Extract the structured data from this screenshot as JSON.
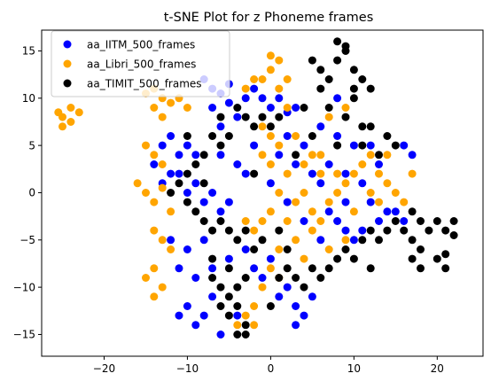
{
  "chart_data": {
    "type": "scatter",
    "title": "t-SNE Plot for z Phoneme frames",
    "xlabel": "",
    "ylabel": "",
    "xlim": [
      -27.5,
      25.5
    ],
    "ylim": [
      -17.3,
      17.2
    ],
    "xticks": [
      -20,
      -10,
      0,
      10,
      20
    ],
    "yticks": [
      -15,
      -10,
      -5,
      0,
      5,
      10,
      15
    ],
    "grid": false,
    "legend": "top-left",
    "series": [
      {
        "name": "aa_IITM_500_frames",
        "color": "#0000ff",
        "points": [
          [
            -8,
            12
          ],
          [
            -7,
            11
          ],
          [
            -6,
            10.5
          ],
          [
            -5,
            11.5
          ],
          [
            -7,
            9
          ],
          [
            -5,
            9.5
          ],
          [
            -4,
            8
          ],
          [
            -6,
            7
          ],
          [
            -3,
            10
          ],
          [
            -2,
            11
          ],
          [
            -1,
            10
          ],
          [
            0,
            9
          ],
          [
            1,
            10
          ],
          [
            2,
            8.5
          ],
          [
            3,
            9
          ],
          [
            -12,
            6
          ],
          [
            -13,
            5
          ],
          [
            -11,
            4
          ],
          [
            -10,
            5
          ],
          [
            -9,
            4
          ],
          [
            -12,
            2
          ],
          [
            -14,
            3
          ],
          [
            -13,
            1
          ],
          [
            -11,
            2
          ],
          [
            -10,
            0
          ],
          [
            -9,
            1
          ],
          [
            -8,
            -1
          ],
          [
            -6,
            -2
          ],
          [
            -5,
            -1
          ],
          [
            -7,
            0
          ],
          [
            2,
            6
          ],
          [
            4,
            5
          ],
          [
            6,
            7
          ],
          [
            8,
            6
          ],
          [
            10,
            5
          ],
          [
            3,
            3
          ],
          [
            5,
            2
          ],
          [
            7,
            3
          ],
          [
            9,
            2
          ],
          [
            11,
            1
          ],
          [
            12,
            -1
          ],
          [
            14,
            -2
          ],
          [
            13,
            -3
          ],
          [
            15,
            -2
          ],
          [
            11,
            -4
          ],
          [
            16,
            5
          ],
          [
            17,
            4
          ],
          [
            16,
            -3
          ],
          [
            7,
            -2
          ],
          [
            8,
            -3
          ],
          [
            9,
            -4
          ],
          [
            10,
            -5
          ],
          [
            6,
            -5
          ],
          [
            -12,
            -5
          ],
          [
            -10,
            -6
          ],
          [
            -8,
            -5
          ],
          [
            -11,
            -8
          ],
          [
            -9,
            -9
          ],
          [
            -7,
            -8
          ],
          [
            -5,
            -7
          ],
          [
            -3,
            -6
          ],
          [
            -2,
            -8
          ],
          [
            -1,
            -9
          ],
          [
            0,
            -7
          ],
          [
            1,
            -11
          ],
          [
            2,
            -10
          ],
          [
            3,
            -12
          ],
          [
            4,
            -13
          ],
          [
            5,
            -11
          ],
          [
            3,
            -14
          ],
          [
            -10,
            -12
          ],
          [
            -11,
            -13
          ],
          [
            -9,
            -14
          ],
          [
            -8,
            -13
          ],
          [
            -6,
            -15
          ],
          [
            -7,
            -11
          ],
          [
            -4,
            -13
          ],
          [
            4,
            -3
          ],
          [
            6,
            1
          ],
          [
            8,
            10
          ],
          [
            -2,
            5
          ],
          [
            -4,
            3
          ],
          [
            0,
            1
          ],
          [
            2,
            -1
          ],
          [
            -3,
            2
          ],
          [
            1,
            4
          ],
          [
            9,
            -1
          ],
          [
            -6,
            4
          ],
          [
            12,
            5
          ],
          [
            13,
            3
          ]
        ]
      },
      {
        "name": "aa_Libri_500_frames",
        "color": "#ffa500",
        "points": [
          [
            -25,
            8
          ],
          [
            -24,
            9
          ],
          [
            -25,
            7
          ],
          [
            -24,
            7.5
          ],
          [
            -23,
            8.5
          ],
          [
            -25.5,
            8.5
          ],
          [
            -14,
            11
          ],
          [
            -13,
            10
          ],
          [
            -15,
            10.5
          ],
          [
            -12,
            9.5
          ],
          [
            -14,
            9
          ],
          [
            -11,
            10
          ],
          [
            -13,
            8
          ],
          [
            -10,
            9
          ],
          [
            -2,
            12
          ],
          [
            0,
            13
          ],
          [
            1,
            14
          ],
          [
            0,
            14.5
          ],
          [
            2,
            12
          ],
          [
            1,
            11
          ],
          [
            -3,
            11
          ],
          [
            -1,
            12
          ],
          [
            -15,
            5
          ],
          [
            -14,
            4
          ],
          [
            -15,
            0
          ],
          [
            -14,
            -1
          ],
          [
            -13,
            0.5
          ],
          [
            -12,
            -2
          ],
          [
            -16,
            1
          ],
          [
            -13,
            3
          ],
          [
            0,
            6
          ],
          [
            1,
            5
          ],
          [
            -1,
            4
          ],
          [
            0,
            3
          ],
          [
            2,
            2
          ],
          [
            1,
            0
          ],
          [
            3,
            -1
          ],
          [
            4,
            0
          ],
          [
            5,
            -2
          ],
          [
            6,
            -3
          ],
          [
            7,
            -1
          ],
          [
            8,
            0
          ],
          [
            9,
            1
          ],
          [
            10,
            2
          ],
          [
            11,
            3
          ],
          [
            12,
            4
          ],
          [
            13,
            2
          ],
          [
            14,
            1
          ],
          [
            15,
            0
          ],
          [
            16,
            -1
          ],
          [
            4,
            3
          ],
          [
            6,
            4
          ],
          [
            8,
            2
          ],
          [
            2,
            -3
          ],
          [
            0,
            -2
          ],
          [
            -1,
            -3
          ],
          [
            3,
            -5
          ],
          [
            5,
            -4
          ],
          [
            7,
            -6
          ],
          [
            9,
            -5
          ],
          [
            -14,
            -8
          ],
          [
            -15,
            -9
          ],
          [
            -13,
            -10
          ],
          [
            -14,
            -11
          ],
          [
            -13,
            -5
          ],
          [
            -14,
            -4
          ],
          [
            -12,
            -6
          ],
          [
            -2,
            -4
          ],
          [
            -3,
            -3
          ],
          [
            -2,
            -12
          ],
          [
            -3,
            -13
          ],
          [
            -4,
            -14
          ],
          [
            -2,
            -14
          ],
          [
            1,
            -6
          ],
          [
            0,
            -8
          ],
          [
            1,
            -9
          ],
          [
            -1,
            -10
          ],
          [
            5,
            4
          ],
          [
            3,
            6
          ],
          [
            14,
            4
          ],
          [
            17,
            2
          ],
          [
            12,
            0
          ],
          [
            10,
            -2
          ],
          [
            7,
            8
          ],
          [
            9,
            9
          ],
          [
            6,
            2
          ],
          [
            4,
            -7
          ],
          [
            -1,
            7
          ],
          [
            2,
            9
          ],
          [
            13,
            -1
          ]
        ]
      },
      {
        "name": "aa_TIMIT_500_frames",
        "color": "#000000",
        "points": [
          [
            5,
            14
          ],
          [
            6,
            13
          ],
          [
            7,
            12
          ],
          [
            8,
            14
          ],
          [
            9,
            15
          ],
          [
            10,
            13
          ],
          [
            11,
            12
          ],
          [
            12,
            11
          ],
          [
            8,
            16
          ],
          [
            9,
            15.5
          ],
          [
            6,
            11
          ],
          [
            10,
            11
          ],
          [
            7,
            9
          ],
          [
            9,
            8
          ],
          [
            12,
            7
          ],
          [
            14,
            6
          ],
          [
            15,
            5
          ],
          [
            13,
            4
          ],
          [
            11,
            7
          ],
          [
            10,
            10
          ],
          [
            -4,
            9
          ],
          [
            -3,
            8
          ],
          [
            -2,
            7
          ],
          [
            -1,
            8
          ],
          [
            0,
            7
          ],
          [
            1,
            8
          ],
          [
            -5,
            6
          ],
          [
            -6,
            5
          ],
          [
            -7,
            6
          ],
          [
            -8,
            4
          ],
          [
            -9,
            3
          ],
          [
            -10,
            2
          ],
          [
            -11,
            1
          ],
          [
            -12,
            0
          ],
          [
            -10,
            -1
          ],
          [
            -9,
            -2
          ],
          [
            -8,
            -3
          ],
          [
            -7,
            -4
          ],
          [
            -6,
            -3
          ],
          [
            -5,
            -4
          ],
          [
            -4,
            -5
          ],
          [
            -3,
            -4
          ],
          [
            -2,
            -6
          ],
          [
            -1,
            -5
          ],
          [
            1,
            -4
          ],
          [
            2,
            -6
          ],
          [
            -7,
            -9
          ],
          [
            -6,
            -10
          ],
          [
            -5,
            -11
          ],
          [
            -4,
            -12
          ],
          [
            -5,
            -13
          ],
          [
            -6,
            -12
          ],
          [
            -4,
            -10
          ],
          [
            -3,
            -9
          ],
          [
            -7,
            -7
          ],
          [
            -5,
            -8
          ],
          [
            -3,
            -15
          ],
          [
            -4,
            -15
          ],
          [
            -3,
            -14
          ],
          [
            1,
            -9
          ],
          [
            2,
            -8
          ],
          [
            3,
            -9
          ],
          [
            4,
            -10
          ],
          [
            5,
            -8
          ],
          [
            6,
            -9
          ],
          [
            7,
            -8
          ],
          [
            8,
            -7
          ],
          [
            9,
            -6
          ],
          [
            10,
            -7
          ],
          [
            11,
            -5
          ],
          [
            12,
            -4
          ],
          [
            13,
            -5
          ],
          [
            14,
            -4
          ],
          [
            15,
            -3
          ],
          [
            16,
            -4
          ],
          [
            17,
            -5
          ],
          [
            18,
            -3
          ],
          [
            19,
            -4
          ],
          [
            20,
            -3
          ],
          [
            21,
            -4
          ],
          [
            22,
            -3
          ],
          [
            20,
            -7
          ],
          [
            21,
            -8
          ],
          [
            22,
            -4.5
          ],
          [
            21,
            -6.5
          ],
          [
            17,
            -7
          ],
          [
            18,
            -8
          ],
          [
            -8,
            1
          ],
          [
            -2,
            2
          ],
          [
            3,
            4
          ],
          [
            5,
            6
          ],
          [
            8,
            5
          ],
          [
            4,
            9
          ],
          [
            -6,
            8
          ],
          [
            -10,
            6
          ],
          [
            0,
            -12
          ],
          [
            17,
            -2
          ],
          [
            18,
            -6
          ],
          [
            11,
            5
          ],
          [
            12,
            -8
          ]
        ]
      }
    ]
  }
}
